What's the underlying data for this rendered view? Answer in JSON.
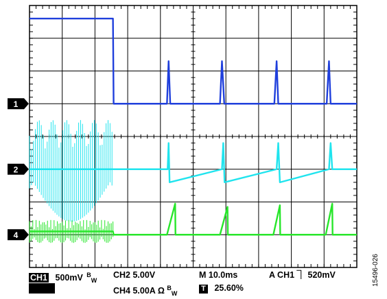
{
  "chart_data": {
    "type": "line",
    "title": "",
    "xlabel": "",
    "ylabel": "",
    "grid": true,
    "x_divisions": 10,
    "y_divisions": 8,
    "time_per_division_ms": 10,
    "xlim_ms": [
      0,
      100
    ],
    "xlim_div": [
      0,
      10
    ],
    "ylim_div": [
      0,
      8
    ],
    "channel_markers": [
      "1",
      "2",
      "4"
    ],
    "series": [
      {
        "name": "CH1",
        "color": "#1f3fdc",
        "volts_per_div": 0.5,
        "ground_div": 5.0,
        "x_div": [
          0,
          2.55,
          2.57,
          4.2,
          4.2,
          4.25,
          4.3,
          5.8,
          5.82,
          5.88,
          5.95,
          7.4,
          7.48,
          7.55,
          7.6,
          9.0,
          9.08,
          9.15,
          9.2,
          10
        ],
        "y_div": [
          7.6,
          7.6,
          5.0,
          5.0,
          5.0,
          6.3,
          5.0,
          5.0,
          5.0,
          6.3,
          5.0,
          5.0,
          5.0,
          6.3,
          5.0,
          5.0,
          5.0,
          6.3,
          5.0,
          5.0
        ]
      },
      {
        "name": "CH2",
        "color": "#20e4ee",
        "volts_per_div": 5.0,
        "ground_div": 3.0,
        "x_div": [
          0,
          2.55,
          2.57,
          4.22,
          4.25,
          4.28,
          5.88,
          5.92,
          5.96,
          7.55,
          7.6,
          7.65,
          9.15,
          9.2,
          9.25,
          10
        ],
        "y_div": [
          3.0,
          3.0,
          3.0,
          3.0,
          3.8,
          2.6,
          3.0,
          3.8,
          2.6,
          3.0,
          3.8,
          2.6,
          3.0,
          3.8,
          3.0,
          3.0
        ]
      },
      {
        "name": "CH4",
        "color": "#27e62a",
        "amps_per_div": 5.0,
        "ground_div": 1.0,
        "x_div": [
          0,
          2.55,
          2.57,
          4.2,
          4.45,
          4.46,
          5.82,
          6.05,
          6.06,
          7.45,
          7.65,
          7.66,
          9.05,
          9.25,
          9.26,
          10
        ],
        "y_div": [
          1.1,
          1.1,
          1.0,
          1.0,
          1.95,
          1.0,
          1.0,
          1.85,
          1.0,
          1.0,
          1.9,
          1.0,
          1.0,
          1.95,
          1.0,
          1.0
        ]
      }
    ],
    "settings": {
      "ch1_label": "CH1",
      "ch1_scale": "500mV",
      "ch1_bw_b": "B",
      "ch1_bw_w": "W",
      "ch2_setting": "CH2 5.00V",
      "timebase": "M 10.0ms",
      "trigger": "A  CH1 ",
      "trigger_slope_symbol": "⏋",
      "trigger_level": " 520mV",
      "ch4_setting": "CH4 5.00A  Ω ",
      "ch4_bw_b": "B",
      "ch4_bw_w": "W",
      "trigger_marker": "T",
      "trigger_position": "25.60%"
    },
    "figure_id": "15496-026"
  }
}
